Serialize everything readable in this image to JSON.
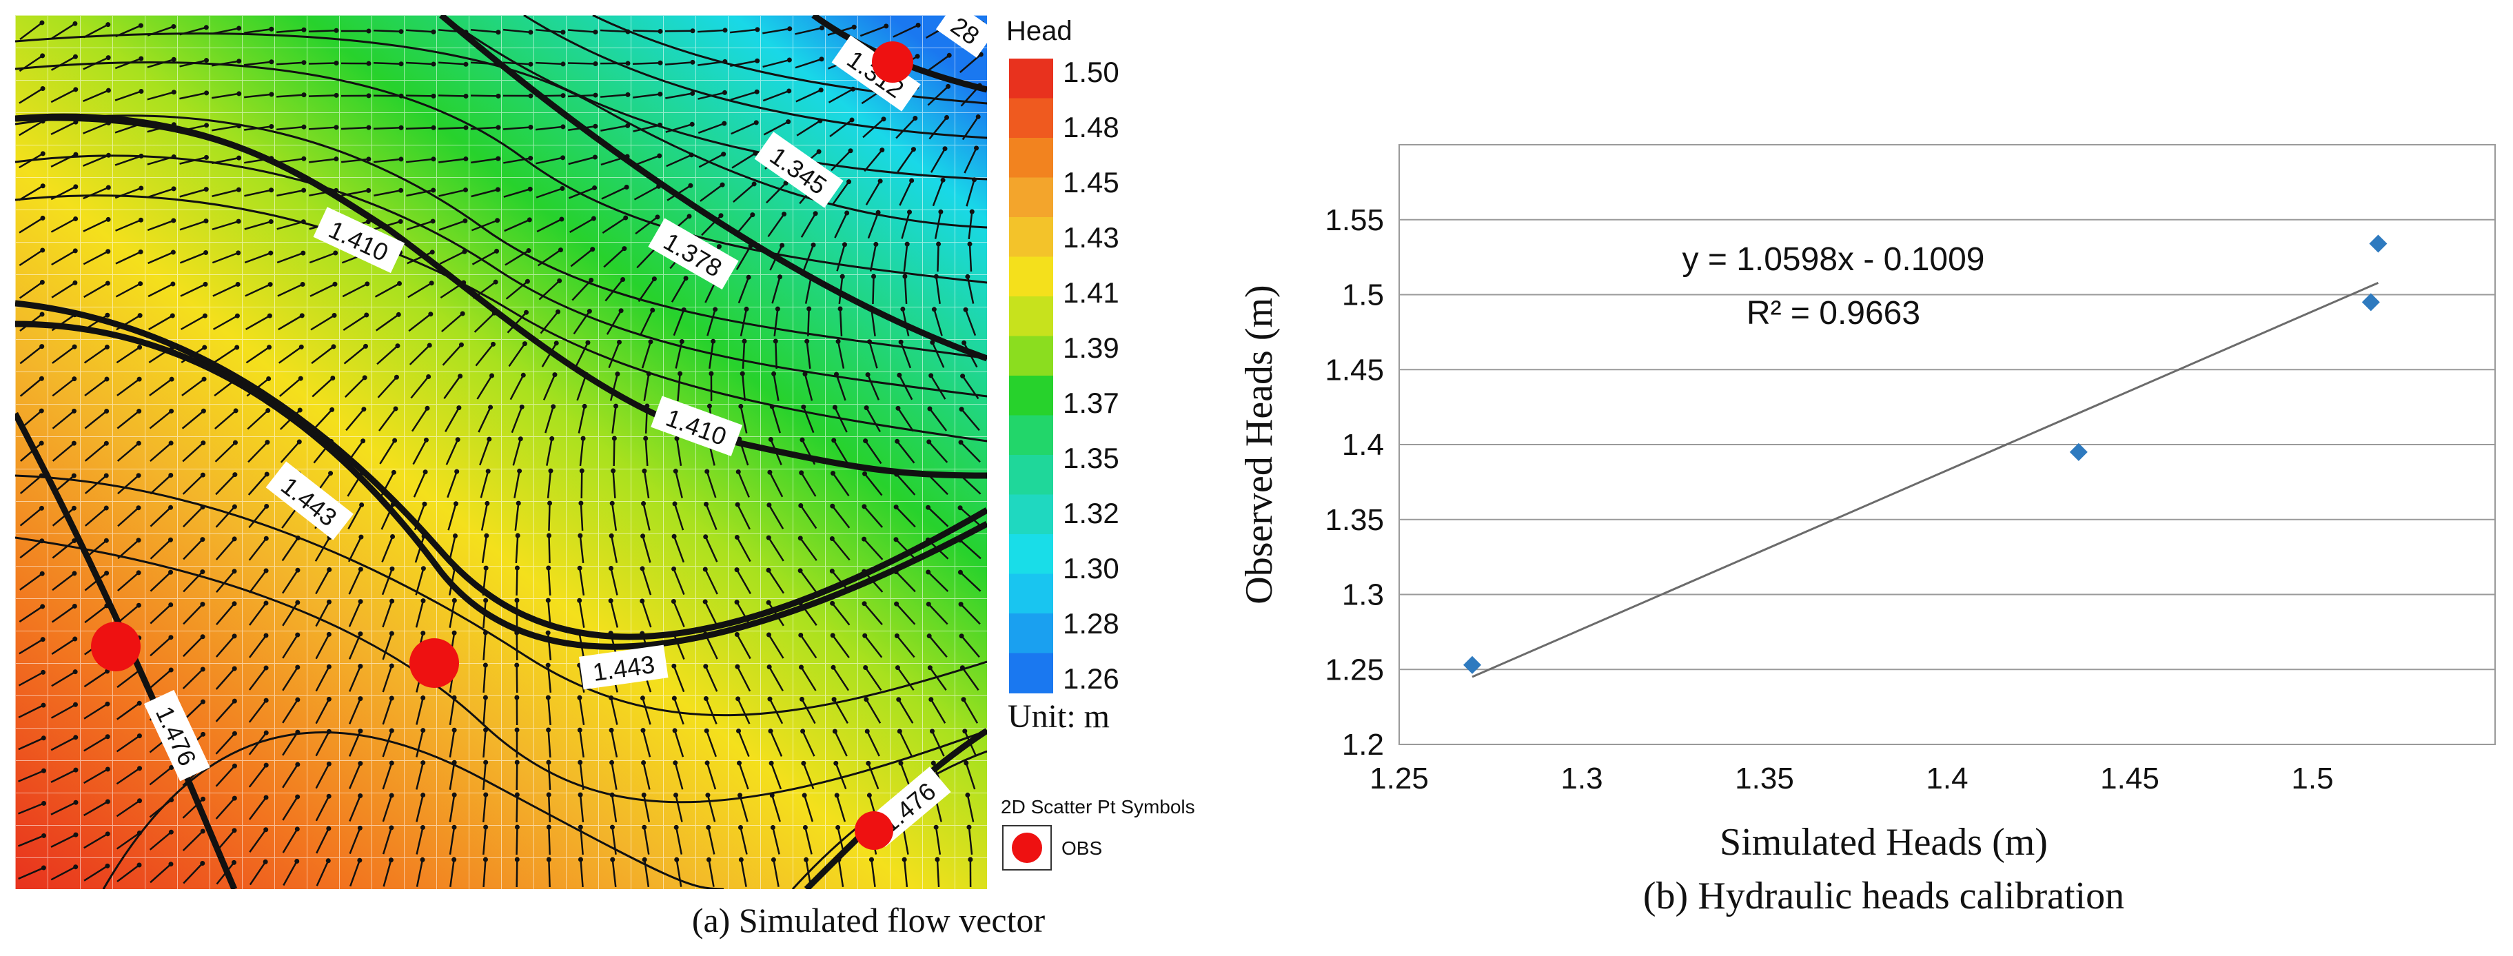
{
  "panel_a": {
    "caption": "(a) Simulated flow vector",
    "legend_title": "Head",
    "legend_values": [
      "1.50",
      "1.48",
      "1.45",
      "1.43",
      "1.41",
      "1.39",
      "1.37",
      "1.35",
      "1.32",
      "1.30",
      "1.28",
      "1.26"
    ],
    "unit_label": "Unit: m",
    "scatter_title": "2D Scatter Pt Symbols",
    "scatter_label": "OBS",
    "contour_labels": [
      "1.312",
      "1.345",
      "1.378",
      "1.410",
      "1.410",
      "1.443",
      "1.443",
      "1.476",
      "1.476",
      "28"
    ],
    "colors": {
      "high": "#e8321e",
      "mid_high": "#f3a52c",
      "mid": "#f6e21a",
      "mid_low": "#27d22c",
      "low": "#19e0ea",
      "lowest": "#1a6af0",
      "obs": "#ee1111"
    }
  },
  "chart_data": {
    "type": "scatter",
    "caption": "(b) Hydraulic heads calibration",
    "xlabel": "Simulated Heads (m)",
    "ylabel": "Observed Heads (m)",
    "xlim": [
      1.25,
      1.55
    ],
    "ylim": [
      1.2,
      1.6
    ],
    "x_ticks": [
      "1.25",
      "1.3",
      "1.35",
      "1.4",
      "1.45",
      "1.5"
    ],
    "x_tick_values": [
      1.25,
      1.3,
      1.35,
      1.4,
      1.45,
      1.5
    ],
    "y_ticks": [
      "1.2",
      "1.25",
      "1.3",
      "1.35",
      "1.4",
      "1.45",
      "1.5",
      "1.55"
    ],
    "y_tick_values": [
      1.2,
      1.25,
      1.3,
      1.35,
      1.4,
      1.45,
      1.5,
      1.55
    ],
    "points": [
      {
        "x": 1.27,
        "y": 1.253
      },
      {
        "x": 1.436,
        "y": 1.395
      },
      {
        "x": 1.516,
        "y": 1.495
      },
      {
        "x": 1.518,
        "y": 1.534
      }
    ],
    "trendline": {
      "x_start": 1.27,
      "x_end": 1.518,
      "slope": 1.0598,
      "intercept": -0.1009
    },
    "equation": "y = 1.0598x - 0.1009",
    "r_squared": "R² = 0.9663",
    "grid": "horizontal",
    "marker_color": "#2e7abf",
    "line_color": "#6b6b6b"
  }
}
